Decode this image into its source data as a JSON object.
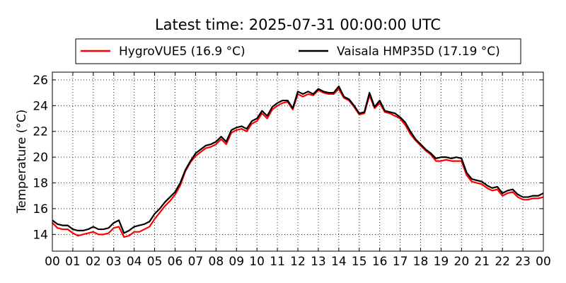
{
  "chart_data": {
    "type": "line",
    "title": "Latest time: 2025-07-31 00:00:00 UTC",
    "xlabel": "",
    "ylabel": "Temperature (°C)",
    "xlim": [
      0,
      24
    ],
    "ylim": [
      12.7,
      26.6
    ],
    "x_tick_labels": [
      "00",
      "01",
      "02",
      "03",
      "04",
      "05",
      "06",
      "07",
      "08",
      "09",
      "10",
      "11",
      "12",
      "13",
      "14",
      "15",
      "16",
      "17",
      "18",
      "19",
      "20",
      "21",
      "22",
      "23",
      "00"
    ],
    "y_ticks": [
      14,
      16,
      18,
      20,
      22,
      24,
      26
    ],
    "grid": true,
    "legend_position": "top",
    "x": [
      0,
      0.25,
      0.5,
      0.75,
      1,
      1.25,
      1.5,
      1.75,
      2,
      2.25,
      2.5,
      2.75,
      3,
      3.25,
      3.5,
      3.75,
      4,
      4.25,
      4.5,
      4.75,
      5,
      5.25,
      5.5,
      5.75,
      6,
      6.25,
      6.5,
      6.75,
      7,
      7.25,
      7.5,
      7.75,
      8,
      8.25,
      8.5,
      8.75,
      9,
      9.25,
      9.5,
      9.75,
      10,
      10.25,
      10.5,
      10.75,
      11,
      11.25,
      11.5,
      11.75,
      12,
      12.25,
      12.5,
      12.75,
      13,
      13.25,
      13.5,
      13.75,
      14,
      14.25,
      14.5,
      14.75,
      15,
      15.25,
      15.5,
      15.75,
      16,
      16.25,
      16.5,
      16.75,
      17,
      17.25,
      17.5,
      17.75,
      18,
      18.25,
      18.5,
      18.75,
      19,
      19.25,
      19.5,
      19.75,
      20,
      20.25,
      20.5,
      20.75,
      21,
      21.25,
      21.5,
      21.75,
      22,
      22.25,
      22.5,
      22.75,
      23,
      23.25,
      23.5,
      23.75,
      24
    ],
    "series": [
      {
        "name": "HygroVUE5 (16.9 °C)",
        "color": "#ff0000",
        "values": [
          14.9,
          14.5,
          14.4,
          14.4,
          14.1,
          13.9,
          14.0,
          14.1,
          14.2,
          14.0,
          14.0,
          14.1,
          14.5,
          14.6,
          13.8,
          13.9,
          14.2,
          14.2,
          14.4,
          14.6,
          15.2,
          15.7,
          16.2,
          16.6,
          17.1,
          17.8,
          18.9,
          19.6,
          20.1,
          20.4,
          20.7,
          20.8,
          21.0,
          21.4,
          21.0,
          21.9,
          22.1,
          22.2,
          22.0,
          22.6,
          22.8,
          23.4,
          23.0,
          23.7,
          24.0,
          24.2,
          24.3,
          23.7,
          24.9,
          24.7,
          24.9,
          24.8,
          25.2,
          25.0,
          24.9,
          24.9,
          25.3,
          24.6,
          24.4,
          23.9,
          23.3,
          23.4,
          24.8,
          23.8,
          24.2,
          23.5,
          23.4,
          23.2,
          23.0,
          22.5,
          21.8,
          21.3,
          20.9,
          20.5,
          20.2,
          19.7,
          19.7,
          19.8,
          19.7,
          19.7,
          19.7,
          18.6,
          18.1,
          18.0,
          17.9,
          17.6,
          17.4,
          17.5,
          17.0,
          17.2,
          17.3,
          16.9,
          16.7,
          16.7,
          16.8,
          16.8,
          16.9
        ]
      },
      {
        "name": "Vaisala HMP35D (17.19 °C)",
        "color": "#000000",
        "values": [
          15.1,
          14.8,
          14.7,
          14.7,
          14.4,
          14.3,
          14.3,
          14.4,
          14.6,
          14.4,
          14.4,
          14.5,
          14.9,
          15.1,
          14.1,
          14.3,
          14.6,
          14.7,
          14.8,
          15.0,
          15.6,
          16.0,
          16.5,
          16.9,
          17.3,
          18.0,
          19.0,
          19.7,
          20.3,
          20.6,
          20.9,
          21.0,
          21.2,
          21.6,
          21.2,
          22.1,
          22.3,
          22.4,
          22.2,
          22.8,
          23.0,
          23.6,
          23.2,
          23.9,
          24.2,
          24.4,
          24.4,
          23.8,
          25.1,
          24.9,
          25.1,
          24.9,
          25.3,
          25.1,
          25.0,
          25.0,
          25.5,
          24.7,
          24.5,
          24.0,
          23.4,
          23.5,
          25.0,
          23.9,
          24.4,
          23.6,
          23.5,
          23.4,
          23.1,
          22.7,
          22.0,
          21.4,
          21.0,
          20.6,
          20.3,
          19.9,
          20.0,
          20.0,
          19.9,
          20.0,
          19.9,
          18.8,
          18.3,
          18.2,
          18.1,
          17.8,
          17.6,
          17.7,
          17.2,
          17.4,
          17.5,
          17.1,
          16.9,
          16.9,
          17.0,
          17.0,
          17.2
        ]
      }
    ]
  }
}
